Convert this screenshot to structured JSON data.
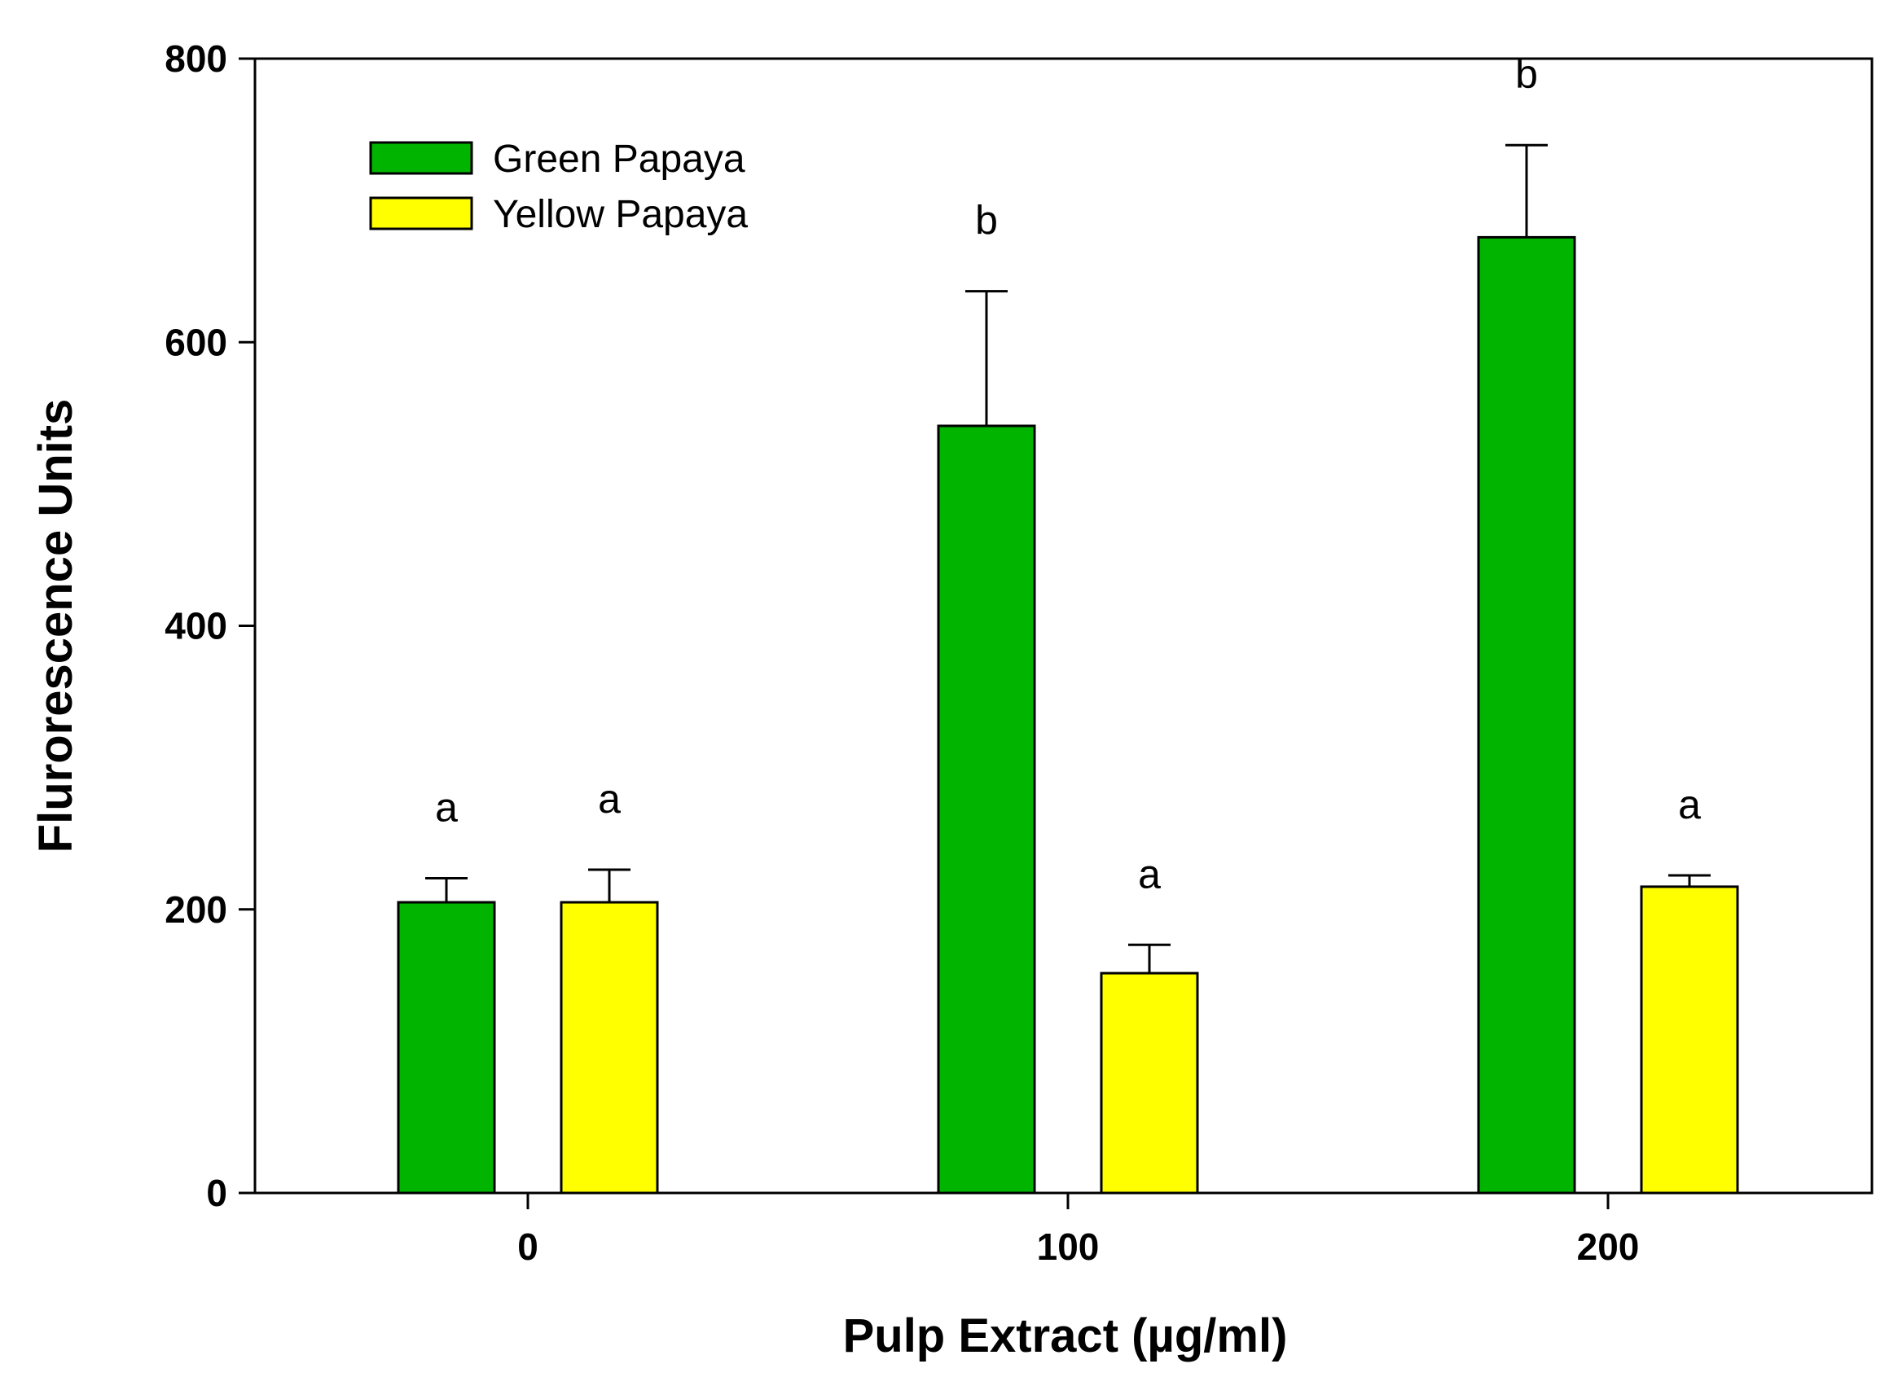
{
  "chart_data": {
    "type": "bar",
    "xlabel": "Pulp Extract (µg/ml)",
    "ylabel": "Flurorescence Units",
    "ylim": [
      0,
      800
    ],
    "yticks": [
      0,
      200,
      400,
      600,
      800
    ],
    "categories": [
      "0",
      "100",
      "200"
    ],
    "series": [
      {
        "name": "Green Papaya",
        "color": "#00b400",
        "values": [
          205,
          541,
          674
        ],
        "errors": [
          17,
          95,
          65
        ],
        "significance": [
          "a",
          "b",
          "b"
        ]
      },
      {
        "name": "Yellow Papaya",
        "color": "#ffff00",
        "values": [
          205,
          155,
          216
        ],
        "errors": [
          23,
          20,
          8
        ],
        "significance": [
          "a",
          "a",
          "a"
        ]
      }
    ],
    "legend_position": "top-left",
    "grid": false
  }
}
